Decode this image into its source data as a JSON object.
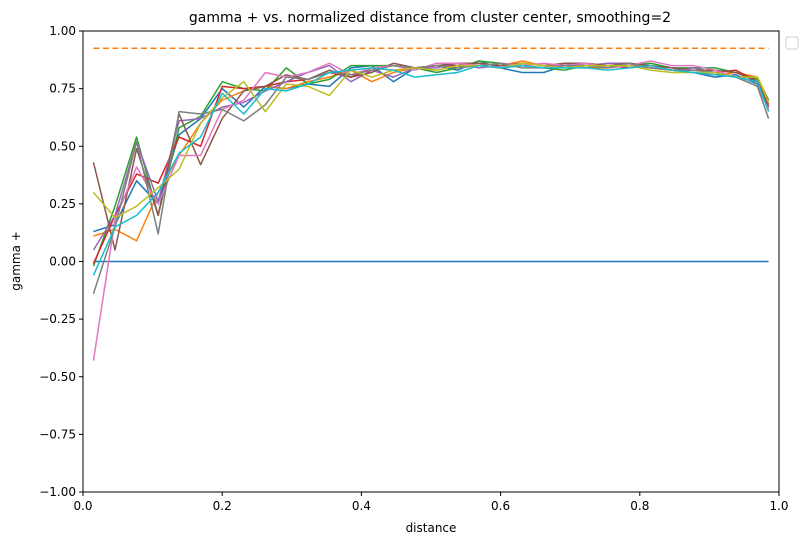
{
  "chart_data": {
    "type": "line",
    "title": "gamma + vs. normalized distance from cluster center, smoothing=2",
    "xlabel": "distance",
    "ylabel": "gamma +",
    "xlim": [
      0,
      1
    ],
    "ylim": [
      -1,
      1
    ],
    "xticks": [
      "0.0",
      "0.2",
      "0.4",
      "0.6",
      "0.8",
      "1.0"
    ],
    "yticks": [
      "−1.00",
      "−0.75",
      "−0.50",
      "−0.25",
      "0.00",
      "0.25",
      "0.50",
      "0.75",
      "1.00"
    ],
    "grid": false,
    "legend": "top-right, empty",
    "x": [
      0.015,
      0.046,
      0.077,
      0.108,
      0.138,
      0.169,
      0.2,
      0.231,
      0.262,
      0.292,
      0.323,
      0.354,
      0.385,
      0.415,
      0.446,
      0.477,
      0.508,
      0.538,
      0.569,
      0.6,
      0.631,
      0.662,
      0.692,
      0.723,
      0.754,
      0.785,
      0.815,
      0.846,
      0.877,
      0.908,
      0.938,
      0.969,
      0.985
    ],
    "reference_lines": [
      {
        "y": 0.0,
        "color": "#1f77b4",
        "style": "solid"
      },
      {
        "y": 0.925,
        "color": "#ff7f0e",
        "style": "dashed"
      }
    ],
    "series": [
      {
        "color": "#1f77b4",
        "values": [
          0.13,
          0.16,
          0.35,
          0.25,
          0.55,
          0.62,
          0.75,
          0.67,
          0.76,
          0.75,
          0.77,
          0.76,
          0.84,
          0.85,
          0.78,
          0.84,
          0.85,
          0.83,
          0.87,
          0.84,
          0.82,
          0.82,
          0.85,
          0.84,
          0.85,
          0.85,
          0.84,
          0.83,
          0.82,
          0.8,
          0.81,
          0.77,
          0.66
        ]
      },
      {
        "color": "#ff7f0e",
        "values": [
          0.11,
          0.14,
          0.09,
          0.3,
          0.46,
          0.6,
          0.7,
          0.74,
          0.76,
          0.75,
          0.78,
          0.8,
          0.83,
          0.78,
          0.82,
          0.84,
          0.83,
          0.85,
          0.86,
          0.85,
          0.87,
          0.85,
          0.85,
          0.84,
          0.84,
          0.85,
          0.84,
          0.83,
          0.82,
          0.81,
          0.82,
          0.8,
          0.7
        ]
      },
      {
        "color": "#2ca02c",
        "values": [
          -0.02,
          0.24,
          0.54,
          0.2,
          0.58,
          0.63,
          0.78,
          0.75,
          0.74,
          0.84,
          0.77,
          0.79,
          0.85,
          0.85,
          0.85,
          0.84,
          0.82,
          0.84,
          0.87,
          0.86,
          0.85,
          0.84,
          0.83,
          0.85,
          0.84,
          0.85,
          0.86,
          0.84,
          0.84,
          0.84,
          0.82,
          0.79,
          0.7
        ]
      },
      {
        "color": "#d62728",
        "values": [
          -0.01,
          0.2,
          0.38,
          0.34,
          0.54,
          0.5,
          0.76,
          0.75,
          0.76,
          0.78,
          0.79,
          0.82,
          0.8,
          0.84,
          0.83,
          0.84,
          0.85,
          0.85,
          0.85,
          0.84,
          0.85,
          0.84,
          0.86,
          0.85,
          0.85,
          0.84,
          0.85,
          0.83,
          0.83,
          0.82,
          0.83,
          0.78,
          0.68
        ]
      },
      {
        "color": "#9467bd",
        "values": [
          0.05,
          0.2,
          0.52,
          0.26,
          0.61,
          0.62,
          0.67,
          0.69,
          0.74,
          0.78,
          0.82,
          0.85,
          0.78,
          0.83,
          0.8,
          0.84,
          0.84,
          0.86,
          0.84,
          0.85,
          0.85,
          0.84,
          0.86,
          0.85,
          0.86,
          0.86,
          0.85,
          0.83,
          0.84,
          0.82,
          0.8,
          0.78,
          0.67
        ]
      },
      {
        "color": "#8c564b",
        "values": [
          0.43,
          0.05,
          0.49,
          0.2,
          0.64,
          0.42,
          0.62,
          0.74,
          0.76,
          0.81,
          0.79,
          0.83,
          0.8,
          0.82,
          0.86,
          0.84,
          0.85,
          0.86,
          0.86,
          0.85,
          0.86,
          0.85,
          0.86,
          0.86,
          0.85,
          0.86,
          0.85,
          0.84,
          0.83,
          0.83,
          0.82,
          0.78,
          0.67
        ]
      },
      {
        "color": "#e377c2",
        "values": [
          -0.43,
          0.18,
          0.41,
          0.25,
          0.46,
          0.46,
          0.66,
          0.7,
          0.82,
          0.8,
          0.82,
          0.86,
          0.81,
          0.84,
          0.85,
          0.83,
          0.86,
          0.86,
          0.85,
          0.86,
          0.85,
          0.86,
          0.85,
          0.86,
          0.84,
          0.85,
          0.87,
          0.85,
          0.85,
          0.83,
          0.8,
          0.76,
          0.66
        ]
      },
      {
        "color": "#7f7f7f",
        "values": [
          -0.14,
          0.15,
          0.52,
          0.12,
          0.65,
          0.64,
          0.66,
          0.61,
          0.68,
          0.8,
          0.79,
          0.82,
          0.81,
          0.83,
          0.85,
          0.84,
          0.85,
          0.84,
          0.85,
          0.86,
          0.84,
          0.84,
          0.85,
          0.85,
          0.84,
          0.86,
          0.84,
          0.83,
          0.83,
          0.82,
          0.8,
          0.76,
          0.62
        ]
      },
      {
        "color": "#bcbd22",
        "values": [
          0.3,
          0.19,
          0.24,
          0.32,
          0.4,
          0.6,
          0.71,
          0.78,
          0.65,
          0.77,
          0.76,
          0.72,
          0.83,
          0.8,
          0.83,
          0.84,
          0.83,
          0.85,
          0.85,
          0.84,
          0.86,
          0.85,
          0.84,
          0.85,
          0.85,
          0.85,
          0.83,
          0.82,
          0.82,
          0.82,
          0.8,
          0.8,
          0.69
        ]
      },
      {
        "color": "#17becf",
        "values": [
          -0.06,
          0.15,
          0.2,
          0.3,
          0.47,
          0.54,
          0.73,
          0.64,
          0.75,
          0.74,
          0.77,
          0.82,
          0.83,
          0.84,
          0.83,
          0.8,
          0.81,
          0.82,
          0.85,
          0.84,
          0.85,
          0.84,
          0.84,
          0.84,
          0.83,
          0.84,
          0.85,
          0.83,
          0.82,
          0.81,
          0.8,
          0.78,
          0.65
        ]
      }
    ]
  }
}
